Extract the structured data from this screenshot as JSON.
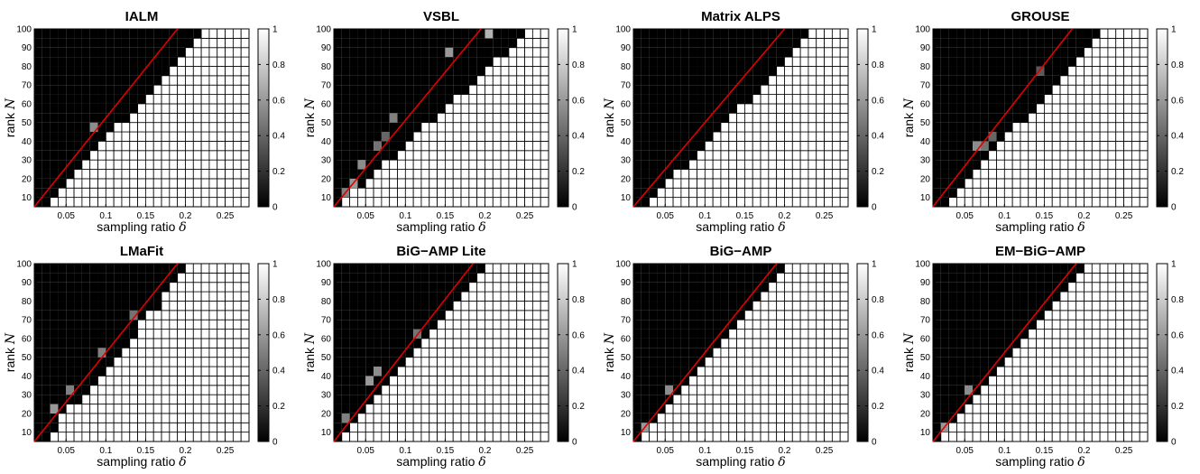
{
  "chart_data": {
    "type": "heatmap",
    "xlabel": "sampling ratio",
    "xlabel_symbol": "δ",
    "ylabel": "rank",
    "ylabel_symbol": "N",
    "x_range": [
      0.01,
      0.28
    ],
    "y_range": [
      5,
      100
    ],
    "x_cells": 27,
    "y_cells": 19,
    "xticks": [
      0.05,
      0.1,
      0.15,
      0.2,
      0.25
    ],
    "xtick_labels": [
      "0.05",
      "0.1",
      "0.15",
      "0.2",
      "0.25"
    ],
    "yticks": [
      10,
      20,
      30,
      40,
      50,
      60,
      70,
      80,
      90,
      100
    ],
    "ytick_labels": [
      "10",
      "20",
      "30",
      "40",
      "50",
      "60",
      "70",
      "80",
      "90",
      "100"
    ],
    "colorbar": {
      "range": [
        0,
        1
      ],
      "colormap": "gray",
      "ticks": [
        0,
        0.2,
        0.4,
        0.6,
        0.8,
        1
      ],
      "tick_labels": [
        "0",
        "0.2",
        "0.4",
        "0.6",
        "0.8",
        "1"
      ]
    },
    "reference_line_color": "#e00000",
    "panels": [
      {
        "title": "IALM",
        "boundary": [
          0.02,
          0.23
        ],
        "line": [
          0.01,
          0.19
        ],
        "gray_cells": [
          [
            7,
            8,
            0.55
          ]
        ]
      },
      {
        "title": "VSBL",
        "boundary": [
          0.015,
          0.26
        ],
        "line": [
          0.01,
          0.195
        ],
        "gray_cells": [
          [
            1,
            1,
            0.5
          ],
          [
            2,
            2,
            0.6
          ],
          [
            3,
            4,
            0.55
          ],
          [
            5,
            6,
            0.45
          ],
          [
            6,
            7,
            0.4
          ],
          [
            7,
            9,
            0.5
          ],
          [
            14,
            16,
            0.6
          ],
          [
            19,
            18,
            0.7
          ]
        ]
      },
      {
        "title": "Matrix ALPS",
        "boundary": [
          0.025,
          0.24
        ],
        "line": [
          0.01,
          0.2
        ],
        "gray_cells": []
      },
      {
        "title": "GROUSE",
        "boundary": [
          0.02,
          0.23
        ],
        "line": [
          0.01,
          0.185
        ],
        "gray_cells": [
          [
            5,
            6,
            0.55
          ],
          [
            6,
            6,
            0.45
          ],
          [
            7,
            7,
            0.4
          ],
          [
            13,
            14,
            0.35
          ]
        ]
      },
      {
        "title": "LMaFit",
        "boundary": [
          0.02,
          0.21
        ],
        "line": [
          0.01,
          0.19
        ],
        "gray_cells": [
          [
            2,
            3,
            0.6
          ],
          [
            4,
            5,
            0.5
          ],
          [
            8,
            9,
            0.5
          ],
          [
            12,
            13,
            0.45
          ]
        ]
      },
      {
        "title": "BiG−AMP Lite",
        "boundary": [
          0.015,
          0.2
        ],
        "line": [
          0.01,
          0.185
        ],
        "gray_cells": [
          [
            1,
            2,
            0.5
          ],
          [
            4,
            6,
            0.6
          ],
          [
            5,
            7,
            0.55
          ],
          [
            10,
            11,
            0.45
          ]
        ]
      },
      {
        "title": "BiG−AMP",
        "boundary": [
          0.015,
          0.2
        ],
        "line": [
          0.01,
          0.19
        ],
        "gray_cells": [
          [
            1,
            1,
            0.6
          ],
          [
            4,
            5,
            0.55
          ]
        ]
      },
      {
        "title": "EM−BiG−AMP",
        "boundary": [
          0.015,
          0.2
        ],
        "line": [
          0.01,
          0.19
        ],
        "gray_cells": [
          [
            1,
            1,
            0.6
          ],
          [
            4,
            5,
            0.55
          ]
        ]
      }
    ]
  }
}
